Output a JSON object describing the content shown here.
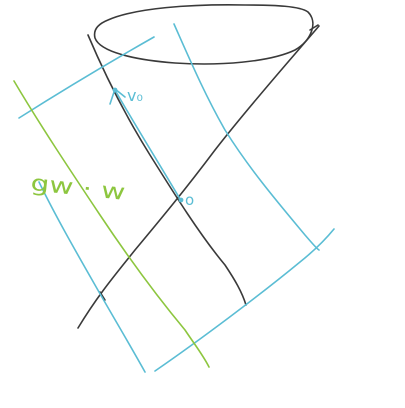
{
  "labels": {
    "vector": "v₀",
    "origin": "o",
    "function": "gw · w"
  },
  "colors": {
    "background": "#ffffff",
    "cone": "#3a3a3a",
    "cyan": "#5bbdd4",
    "green": "#8dc63f"
  }
}
